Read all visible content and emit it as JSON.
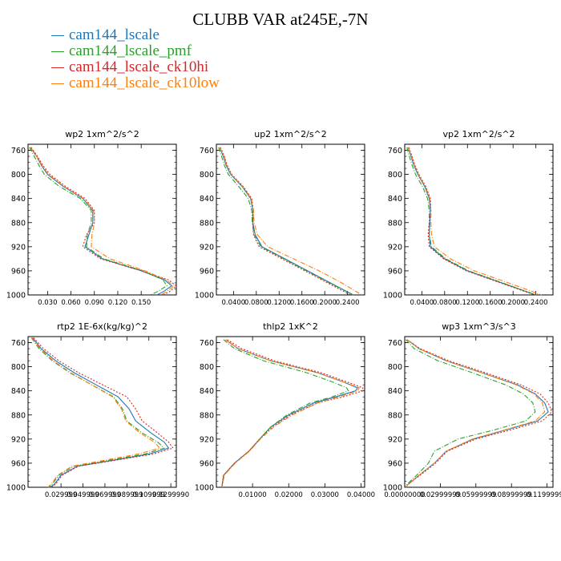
{
  "title": "CLUBB VAR at245E,-7N",
  "series": [
    {
      "name": "cam144_lscale",
      "color": "#1f77b4",
      "dash": ""
    },
    {
      "name": "cam144_lscale_pmf",
      "color": "#2ca02c",
      "dash": "6,2,1,2"
    },
    {
      "name": "cam144_lscale_ck10hi",
      "color": "#d62728",
      "dash": "2,2"
    },
    {
      "name": "cam144_lscale_ck10low",
      "color": "#ff7f0e",
      "dash": "6,2,1,2"
    }
  ],
  "chart_data": [
    {
      "type": "line",
      "title": "wp2   1xm^2/s^2",
      "xlim": [
        0.005,
        0.195
      ],
      "ylim": [
        1000,
        750
      ],
      "xticks": [
        0.03,
        0.06,
        0.09,
        0.12,
        0.15
      ],
      "xtick_labels": [
        "0.030",
        "0.060",
        "0.090",
        "0.120",
        "0.150"
      ],
      "yticks": [
        760,
        800,
        840,
        880,
        920,
        960,
        1000
      ],
      "y": [
        755,
        770,
        785,
        800,
        820,
        840,
        860,
        880,
        900,
        920,
        940,
        960,
        975,
        985,
        995,
        1000
      ],
      "series": [
        {
          "name": "cam144_lscale",
          "x": [
            0.008,
            0.016,
            0.022,
            0.03,
            0.05,
            0.075,
            0.088,
            0.088,
            0.083,
            0.078,
            0.1,
            0.15,
            0.18,
            0.189,
            0.178,
            0.17
          ]
        },
        {
          "name": "cam144_lscale_pmf",
          "x": [
            0.007,
            0.013,
            0.019,
            0.026,
            0.045,
            0.072,
            0.086,
            0.086,
            0.081,
            0.08,
            0.102,
            0.152,
            0.178,
            0.183,
            0.17,
            0.162
          ]
        },
        {
          "name": "cam144_lscale_ck10hi",
          "x": [
            0.009,
            0.017,
            0.024,
            0.033,
            0.053,
            0.078,
            0.09,
            0.09,
            0.08,
            0.075,
            0.098,
            0.15,
            0.185,
            0.195,
            0.186,
            0.178
          ]
        },
        {
          "name": "cam144_lscale_ck10low",
          "x": [
            0.008,
            0.016,
            0.023,
            0.031,
            0.051,
            0.076,
            0.089,
            0.09,
            0.087,
            0.086,
            0.11,
            0.155,
            0.182,
            0.192,
            0.182,
            0.175
          ]
        }
      ]
    },
    {
      "type": "line",
      "title": "up2   1xm^2/s^2",
      "xlim": [
        0.01,
        0.27
      ],
      "ylim": [
        1000,
        750
      ],
      "xticks": [
        0.04,
        0.08,
        0.12,
        0.16,
        0.2,
        0.24
      ],
      "xtick_labels": [
        "0.0400",
        "0.0800",
        "0.1200",
        "0.1600",
        "0.2000",
        "0.2400"
      ],
      "yticks": [
        760,
        800,
        840,
        880,
        920,
        960,
        1000
      ],
      "y": [
        755,
        770,
        785,
        800,
        820,
        840,
        860,
        880,
        900,
        920,
        940,
        960,
        980,
        1000
      ],
      "series": [
        {
          "name": "cam144_lscale",
          "x": [
            0.016,
            0.022,
            0.027,
            0.035,
            0.055,
            0.07,
            0.074,
            0.074,
            0.078,
            0.09,
            0.13,
            0.17,
            0.21,
            0.25
          ]
        },
        {
          "name": "cam144_lscale_pmf",
          "x": [
            0.014,
            0.019,
            0.024,
            0.031,
            0.049,
            0.066,
            0.072,
            0.073,
            0.076,
            0.088,
            0.128,
            0.168,
            0.208,
            0.25
          ]
        },
        {
          "name": "cam144_lscale_ck10hi",
          "x": [
            0.017,
            0.024,
            0.029,
            0.037,
            0.057,
            0.072,
            0.075,
            0.074,
            0.075,
            0.085,
            0.125,
            0.165,
            0.205,
            0.245
          ]
        },
        {
          "name": "cam144_lscale_ck10low",
          "x": [
            0.016,
            0.023,
            0.028,
            0.036,
            0.056,
            0.071,
            0.075,
            0.076,
            0.082,
            0.1,
            0.145,
            0.19,
            0.23,
            0.265
          ]
        }
      ]
    },
    {
      "type": "line",
      "title": "vp2   1xm^2/s^2",
      "xlim": [
        0.01,
        0.27
      ],
      "ylim": [
        1000,
        750
      ],
      "xticks": [
        0.04,
        0.08,
        0.12,
        0.16,
        0.2,
        0.24
      ],
      "xtick_labels": [
        "0.0400",
        "0.0800",
        "0.1200",
        "0.1600",
        "0.2000",
        "0.2400"
      ],
      "yticks": [
        760,
        800,
        840,
        880,
        920,
        960,
        1000
      ],
      "y": [
        755,
        770,
        785,
        800,
        820,
        840,
        860,
        880,
        900,
        920,
        940,
        960,
        980,
        1000
      ],
      "series": [
        {
          "name": "cam144_lscale",
          "x": [
            0.016,
            0.021,
            0.026,
            0.033,
            0.045,
            0.053,
            0.055,
            0.054,
            0.053,
            0.055,
            0.08,
            0.12,
            0.18,
            0.24
          ]
        },
        {
          "name": "cam144_lscale_pmf",
          "x": [
            0.014,
            0.018,
            0.023,
            0.029,
            0.041,
            0.05,
            0.053,
            0.053,
            0.053,
            0.057,
            0.082,
            0.122,
            0.182,
            0.24
          ]
        },
        {
          "name": "cam144_lscale_ck10hi",
          "x": [
            0.017,
            0.023,
            0.028,
            0.035,
            0.047,
            0.055,
            0.056,
            0.053,
            0.051,
            0.053,
            0.078,
            0.118,
            0.178,
            0.238
          ]
        },
        {
          "name": "cam144_lscale_ck10low",
          "x": [
            0.016,
            0.022,
            0.027,
            0.034,
            0.046,
            0.054,
            0.056,
            0.056,
            0.057,
            0.062,
            0.09,
            0.132,
            0.192,
            0.25
          ]
        }
      ]
    },
    {
      "type": "line",
      "title": "rtp2   1E-6x(kg/kg)^2",
      "xlim": [
        0.0,
        0.135
      ],
      "ylim": [
        1000,
        750
      ],
      "xticks": [
        0.02999999,
        0.04999999,
        0.06999999,
        0.08999999,
        0.1099999,
        0.1299999
      ],
      "xtick_labels": [
        "0.029999",
        "0.049999",
        "0.069999",
        "0.089999",
        "0.109999",
        "0.1299990"
      ],
      "yticks": [
        760,
        800,
        840,
        880,
        920,
        960,
        1000
      ],
      "y": [
        752,
        770,
        790,
        810,
        830,
        850,
        870,
        890,
        910,
        925,
        935,
        945,
        955,
        965,
        980,
        995,
        1000
      ],
      "series": [
        {
          "name": "cam144_lscale",
          "x": [
            0.004,
            0.012,
            0.025,
            0.042,
            0.062,
            0.082,
            0.092,
            0.098,
            0.112,
            0.124,
            0.128,
            0.11,
            0.078,
            0.045,
            0.03,
            0.024,
            0.02
          ]
        },
        {
          "name": "cam144_lscale_pmf",
          "x": [
            0.003,
            0.01,
            0.022,
            0.038,
            0.058,
            0.078,
            0.086,
            0.09,
            0.104,
            0.118,
            0.124,
            0.106,
            0.074,
            0.042,
            0.028,
            0.022,
            0.019
          ]
        },
        {
          "name": "cam144_lscale_ck10hi",
          "x": [
            0.005,
            0.014,
            0.028,
            0.046,
            0.068,
            0.09,
            0.098,
            0.104,
            0.118,
            0.128,
            0.132,
            0.114,
            0.08,
            0.046,
            0.031,
            0.025,
            0.021
          ]
        },
        {
          "name": "cam144_lscale_ck10low",
          "x": [
            0.003,
            0.011,
            0.023,
            0.039,
            0.058,
            0.077,
            0.085,
            0.089,
            0.102,
            0.115,
            0.12,
            0.1,
            0.07,
            0.04,
            0.027,
            0.021,
            0.018
          ]
        }
      ]
    },
    {
      "type": "line",
      "title": "thlp2   1xK^2",
      "xlim": [
        0.0,
        0.041
      ],
      "ylim": [
        1000,
        750
      ],
      "xticks": [
        0.01,
        0.02,
        0.03,
        0.04
      ],
      "xtick_labels": [
        "0.01000",
        "0.02000",
        "0.03000",
        "0.04000"
      ],
      "yticks": [
        760,
        800,
        840,
        880,
        920,
        960,
        1000
      ],
      "y": [
        755,
        770,
        790,
        810,
        825,
        835,
        840,
        850,
        860,
        880,
        900,
        920,
        940,
        960,
        980,
        1000
      ],
      "series": [
        {
          "name": "cam144_lscale",
          "x": [
            0.0025,
            0.006,
            0.015,
            0.028,
            0.035,
            0.039,
            0.0385,
            0.033,
            0.027,
            0.02,
            0.015,
            0.012,
            0.009,
            0.005,
            0.002,
            0.0015
          ]
        },
        {
          "name": "cam144_lscale_pmf",
          "x": [
            0.002,
            0.005,
            0.013,
            0.025,
            0.032,
            0.036,
            0.0365,
            0.032,
            0.026,
            0.0195,
            0.015,
            0.012,
            0.009,
            0.005,
            0.002,
            0.0015
          ]
        },
        {
          "name": "cam144_lscale_ck10hi",
          "x": [
            0.003,
            0.007,
            0.016,
            0.029,
            0.036,
            0.0405,
            0.0405,
            0.035,
            0.028,
            0.0205,
            0.0155,
            0.012,
            0.009,
            0.005,
            0.002,
            0.0015
          ]
        },
        {
          "name": "cam144_lscale_ck10low",
          "x": [
            0.0025,
            0.006,
            0.015,
            0.028,
            0.035,
            0.0395,
            0.039,
            0.034,
            0.028,
            0.021,
            0.0158,
            0.0122,
            0.0092,
            0.0052,
            0.0022,
            0.0016
          ]
        }
      ]
    },
    {
      "type": "line",
      "title": "wp3   1xm^3/s^3",
      "xlim": [
        0.0,
        0.125
      ],
      "ylim": [
        1000,
        750
      ],
      "xticks": [
        0.0,
        0.02999999,
        0.05999999,
        0.08999999,
        0.1199999
      ],
      "xtick_labels": [
        "0.00000000",
        "0.02999999",
        "0.05999999",
        "0.08999999",
        "0.11999999"
      ],
      "yticks": [
        760,
        800,
        840,
        880,
        920,
        960,
        1000
      ],
      "y": [
        755,
        770,
        790,
        810,
        830,
        845,
        860,
        875,
        890,
        905,
        920,
        940,
        960,
        980,
        995,
        1000
      ],
      "series": [
        {
          "name": "cam144_lscale",
          "x": [
            0.002,
            0.012,
            0.035,
            0.065,
            0.095,
            0.11,
            0.118,
            0.121,
            0.112,
            0.085,
            0.058,
            0.035,
            0.025,
            0.012,
            0.003,
            0.001
          ]
        },
        {
          "name": "cam144_lscale_pmf",
          "x": [
            0.001,
            0.008,
            0.028,
            0.057,
            0.085,
            0.1,
            0.108,
            0.11,
            0.102,
            0.075,
            0.045,
            0.025,
            0.02,
            0.01,
            0.002,
            0.0005
          ]
        },
        {
          "name": "cam144_lscale_ck10hi",
          "x": [
            0.002,
            0.013,
            0.037,
            0.068,
            0.098,
            0.114,
            0.121,
            0.124,
            0.116,
            0.089,
            0.06,
            0.036,
            0.026,
            0.013,
            0.003,
            0.001
          ]
        },
        {
          "name": "cam144_lscale_ck10low",
          "x": [
            0.002,
            0.012,
            0.035,
            0.065,
            0.094,
            0.109,
            0.116,
            0.118,
            0.11,
            0.084,
            0.057,
            0.035,
            0.025,
            0.012,
            0.003,
            0.001
          ]
        }
      ]
    }
  ]
}
